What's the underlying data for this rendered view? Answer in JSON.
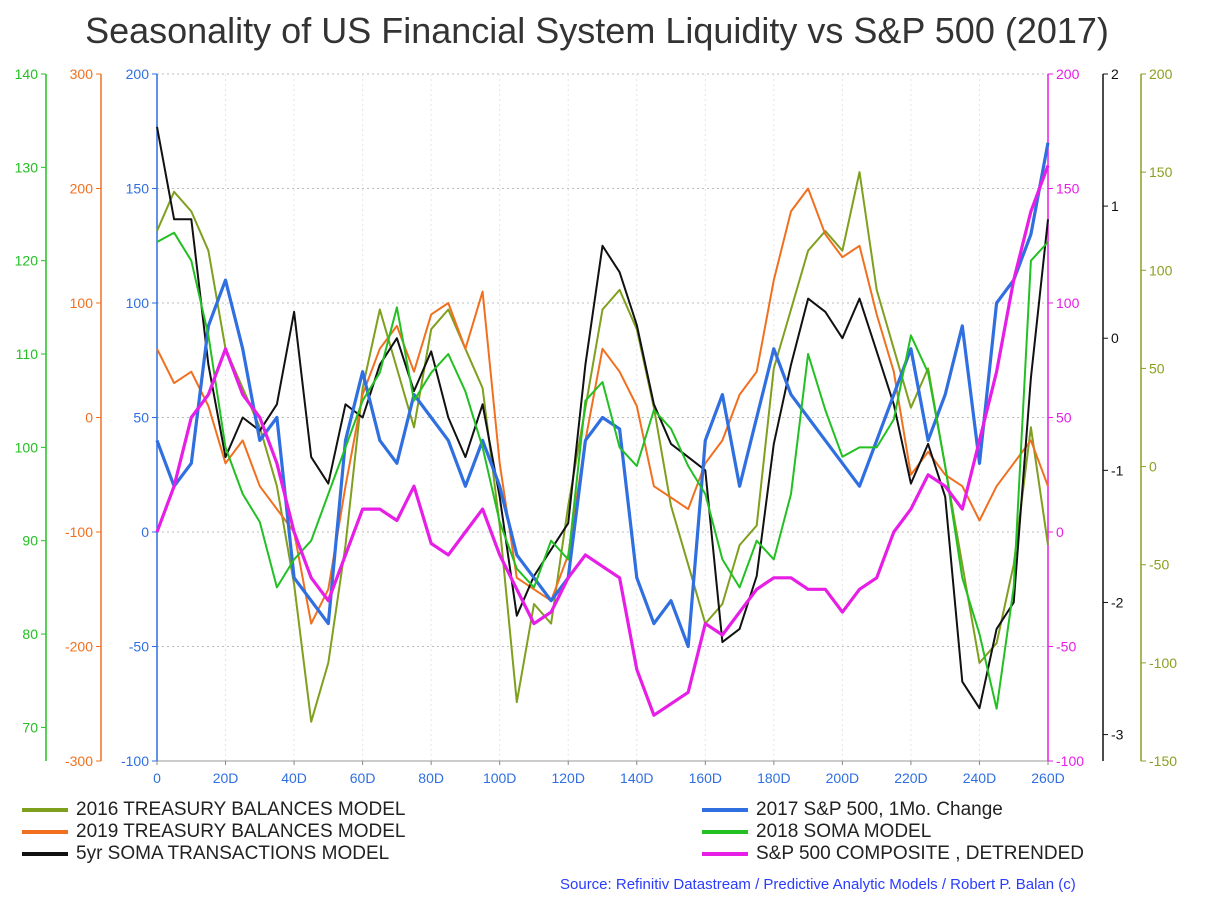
{
  "title": "Seasonality of US Financial System Liquidity vs S&P 500 (2017)",
  "source": "Source: Refinitiv Datastream / Predictive Analytic Models / Robert P. Balan (c)",
  "chart_data": {
    "type": "line",
    "x_tick_labels": [
      "0",
      "20D",
      "40D",
      "60D",
      "80D",
      "100D",
      "120D",
      "140D",
      "160D",
      "180D",
      "200D",
      "220D",
      "240D",
      "260D"
    ],
    "xlim": [
      0,
      260
    ],
    "grid": true,
    "axes": [
      {
        "id": "ax-green-left",
        "side": "left",
        "color": "#22c022",
        "ticks": [
          70,
          80,
          90,
          100,
          110,
          120,
          130,
          140
        ],
        "range": [
          66.4,
          140
        ]
      },
      {
        "id": "ax-orange-left",
        "side": "left",
        "color": "#f07020",
        "ticks": [
          -300,
          -200,
          -100,
          0,
          100,
          200,
          300
        ],
        "range": [
          -300,
          300
        ]
      },
      {
        "id": "ax-blue-left",
        "side": "left",
        "color": "#2f6fe0",
        "ticks": [
          -100,
          -50,
          0,
          50,
          100,
          150,
          200
        ],
        "range": [
          -100,
          200
        ]
      },
      {
        "id": "ax-magenta-right",
        "side": "right",
        "color": "#e61ee6",
        "ticks": [
          -100,
          -50,
          0,
          50,
          100,
          150,
          200
        ],
        "range": [
          -100,
          200
        ]
      },
      {
        "id": "ax-black-right",
        "side": "right",
        "color": "#111111",
        "ticks": [
          -3,
          -2,
          -1,
          0,
          1,
          2
        ],
        "range": [
          -3.2,
          2
        ]
      },
      {
        "id": "ax-olive-right",
        "side": "right",
        "color": "#8aa020",
        "ticks": [
          -150,
          -100,
          -50,
          0,
          50,
          100,
          150,
          200
        ],
        "range": [
          -150,
          200
        ]
      }
    ],
    "series": [
      {
        "name": "2016 TREASURY BALANCES MODEL",
        "color": "#7f9f1f",
        "axis": "ax-olive-right",
        "x": [
          0,
          5,
          10,
          15,
          20,
          25,
          30,
          35,
          40,
          45,
          50,
          55,
          60,
          65,
          70,
          75,
          80,
          85,
          90,
          95,
          100,
          105,
          110,
          115,
          120,
          125,
          130,
          135,
          140,
          145,
          150,
          155,
          160,
          165,
          170,
          175,
          180,
          185,
          190,
          195,
          200,
          205,
          210,
          215,
          220,
          225,
          230,
          235,
          240,
          245,
          250,
          255,
          260
        ],
        "values": [
          120,
          140,
          130,
          110,
          60,
          40,
          20,
          -10,
          -60,
          -130,
          -100,
          -40,
          40,
          80,
          50,
          20,
          70,
          80,
          60,
          40,
          -30,
          -120,
          -70,
          -80,
          -20,
          30,
          80,
          90,
          70,
          30,
          -20,
          -50,
          -80,
          -70,
          -40,
          -30,
          50,
          80,
          110,
          120,
          110,
          150,
          90,
          60,
          30,
          50,
          0,
          -50,
          -100,
          -90,
          -50,
          20,
          -40
        ]
      },
      {
        "name": "2019 TREASURY BALANCES MODEL",
        "color": "#f07020",
        "axis": "ax-orange-left",
        "x": [
          0,
          5,
          10,
          15,
          20,
          25,
          30,
          35,
          40,
          45,
          50,
          55,
          60,
          65,
          70,
          75,
          80,
          85,
          90,
          95,
          100,
          105,
          110,
          115,
          120,
          125,
          130,
          135,
          140,
          145,
          150,
          155,
          160,
          165,
          170,
          175,
          180,
          185,
          190,
          195,
          200,
          205,
          210,
          215,
          220,
          225,
          230,
          235,
          240,
          245,
          250,
          255,
          260
        ],
        "values": [
          60,
          30,
          40,
          10,
          -40,
          -20,
          -60,
          -80,
          -100,
          -180,
          -150,
          -60,
          20,
          60,
          80,
          40,
          90,
          100,
          60,
          110,
          -40,
          -140,
          -150,
          -160,
          -120,
          -20,
          60,
          40,
          10,
          -60,
          -70,
          -80,
          -40,
          -20,
          20,
          40,
          120,
          180,
          200,
          160,
          140,
          150,
          90,
          40,
          -50,
          -30,
          -50,
          -60,
          -90,
          -60,
          -40,
          -20,
          -60
        ]
      },
      {
        "name": "5yr SOMA TRANSACTIONS MODEL",
        "color": "#111111",
        "axis": "ax-black-right",
        "x": [
          0,
          5,
          10,
          15,
          20,
          25,
          30,
          35,
          40,
          45,
          50,
          55,
          60,
          65,
          70,
          75,
          80,
          85,
          90,
          95,
          100,
          105,
          110,
          115,
          120,
          125,
          130,
          135,
          140,
          145,
          150,
          155,
          160,
          165,
          170,
          175,
          180,
          185,
          190,
          195,
          200,
          205,
          210,
          215,
          220,
          225,
          230,
          235,
          240,
          245,
          250,
          255,
          260
        ],
        "values": [
          1.6,
          0.9,
          0.9,
          -0.2,
          -0.9,
          -0.6,
          -0.7,
          -0.5,
          0.2,
          -0.9,
          -1.1,
          -0.5,
          -0.6,
          -0.2,
          0.0,
          -0.4,
          -0.1,
          -0.6,
          -0.9,
          -0.5,
          -1.2,
          -2.1,
          -1.8,
          -1.6,
          -1.4,
          -0.2,
          0.7,
          0.5,
          0.1,
          -0.5,
          -0.8,
          -0.9,
          -1.0,
          -2.3,
          -2.2,
          -1.8,
          -0.8,
          -0.2,
          0.3,
          0.2,
          0.0,
          0.3,
          -0.1,
          -0.5,
          -1.1,
          -0.8,
          -1.2,
          -2.6,
          -2.8,
          -2.2,
          -2.0,
          -0.3,
          0.9
        ]
      },
      {
        "name": "2017 S&P 500, 1Mo. Change",
        "color": "#2f6fe0",
        "axis": "ax-blue-left",
        "x": [
          0,
          5,
          10,
          15,
          20,
          25,
          30,
          35,
          40,
          45,
          50,
          55,
          60,
          65,
          70,
          75,
          80,
          85,
          90,
          95,
          100,
          105,
          110,
          115,
          120,
          125,
          130,
          135,
          140,
          145,
          150,
          155,
          160,
          165,
          170,
          175,
          180,
          185,
          190,
          195,
          200,
          205,
          210,
          215,
          220,
          225,
          230,
          235,
          240,
          245,
          250,
          255,
          260
        ],
        "values": [
          40,
          20,
          30,
          90,
          110,
          80,
          40,
          50,
          -20,
          -30,
          -40,
          40,
          70,
          40,
          30,
          60,
          50,
          40,
          20,
          40,
          20,
          -10,
          -20,
          -30,
          -20,
          40,
          50,
          45,
          -20,
          -40,
          -30,
          -50,
          40,
          60,
          20,
          50,
          80,
          60,
          50,
          40,
          30,
          20,
          40,
          60,
          80,
          40,
          60,
          90,
          30,
          100,
          110,
          130,
          170
        ]
      },
      {
        "name": "2018 SOMA MODEL",
        "color": "#22c022",
        "axis": "ax-green-left",
        "x": [
          0,
          5,
          10,
          15,
          20,
          25,
          30,
          35,
          40,
          45,
          50,
          55,
          60,
          65,
          70,
          75,
          80,
          85,
          90,
          95,
          100,
          105,
          110,
          115,
          120,
          125,
          130,
          135,
          140,
          145,
          150,
          155,
          160,
          165,
          170,
          175,
          180,
          185,
          190,
          195,
          200,
          205,
          210,
          215,
          220,
          225,
          230,
          235,
          240,
          245,
          250,
          255,
          260
        ],
        "values": [
          122,
          123,
          120,
          112,
          100,
          95,
          92,
          85,
          88,
          90,
          95,
          100,
          105,
          108,
          115,
          105,
          108,
          110,
          106,
          100,
          92,
          87,
          85,
          90,
          88,
          105,
          107,
          100,
          98,
          104,
          102,
          98,
          95,
          88,
          85,
          90,
          88,
          95,
          110,
          104,
          99,
          100,
          100,
          103,
          112,
          108,
          98,
          86,
          80,
          72,
          85,
          120,
          122
        ]
      },
      {
        "name": "S&P 500 COMPOSITE , DETRENDED",
        "color": "#e61ee6",
        "axis": "ax-magenta-right",
        "x": [
          0,
          5,
          10,
          15,
          20,
          25,
          30,
          35,
          40,
          45,
          50,
          55,
          60,
          65,
          70,
          75,
          80,
          85,
          90,
          95,
          100,
          105,
          110,
          115,
          120,
          125,
          130,
          135,
          140,
          145,
          150,
          155,
          160,
          165,
          170,
          175,
          180,
          185,
          190,
          195,
          200,
          205,
          210,
          215,
          220,
          225,
          230,
          235,
          240,
          245,
          250,
          255,
          260
        ],
        "values": [
          0,
          20,
          50,
          60,
          80,
          60,
          50,
          30,
          0,
          -20,
          -30,
          -10,
          10,
          10,
          5,
          20,
          -5,
          -10,
          0,
          10,
          -10,
          -25,
          -40,
          -35,
          -20,
          -10,
          -15,
          -20,
          -60,
          -80,
          -75,
          -70,
          -40,
          -45,
          -35,
          -25,
          -20,
          -20,
          -25,
          -25,
          -35,
          -25,
          -20,
          0,
          10,
          25,
          20,
          10,
          40,
          70,
          110,
          140,
          160
        ]
      }
    ]
  },
  "legend_left": [
    {
      "label": "2016 TREASURY BALANCES MODEL",
      "color": "#7f9f1f"
    },
    {
      "label": "2019 TREASURY BALANCES MODEL",
      "color": "#f07020"
    },
    {
      "label": "5yr SOMA TRANSACTIONS MODEL",
      "color": "#111111"
    }
  ],
  "legend_right": [
    {
      "label": "2017 S&P 500, 1Mo. Change",
      "color": "#2f6fe0"
    },
    {
      "label": "2018 SOMA MODEL",
      "color": "#22c022"
    },
    {
      "label": "S&P 500 COMPOSITE , DETRENDED",
      "color": "#e61ee6"
    }
  ]
}
